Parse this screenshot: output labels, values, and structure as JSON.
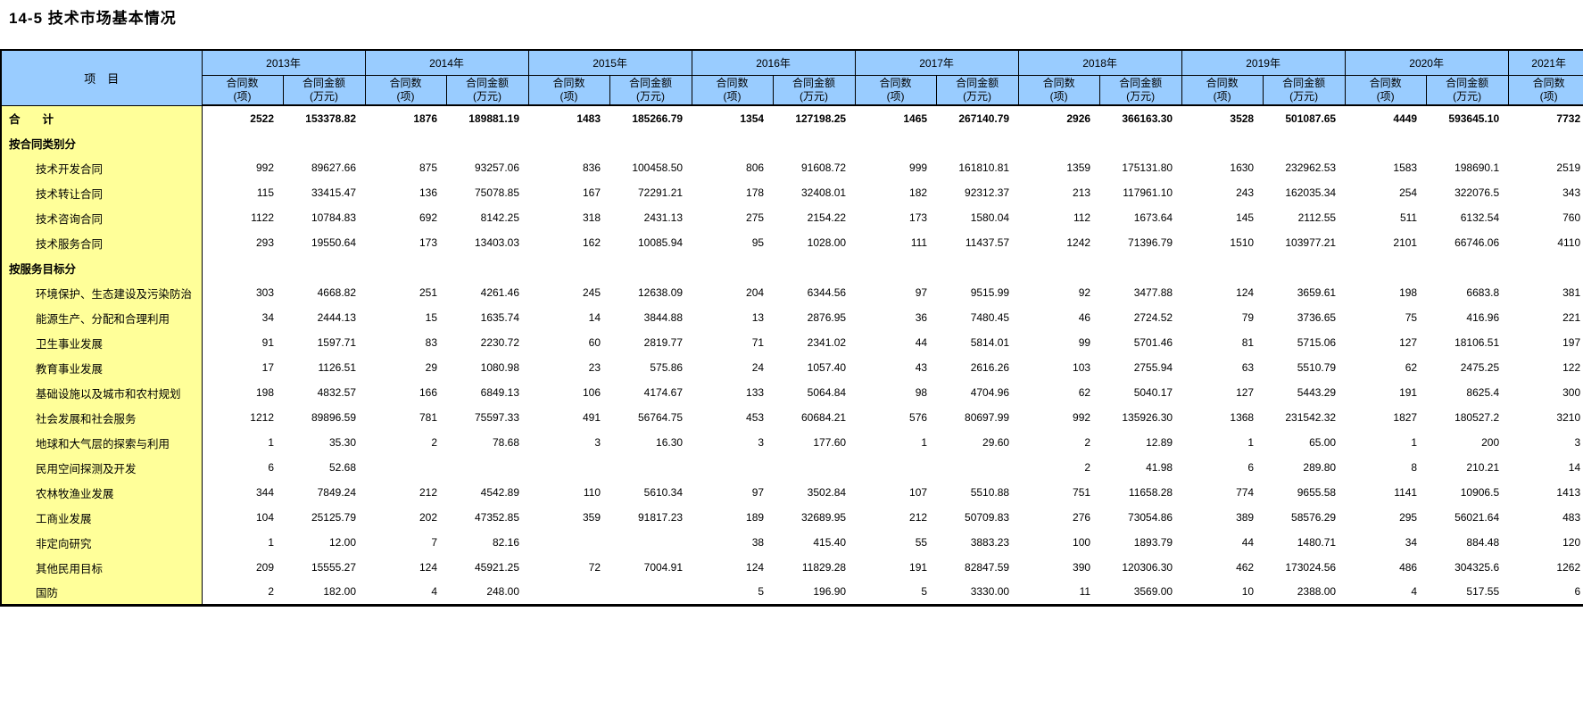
{
  "title": "14-5  技术市场基本情况",
  "table": {
    "item_header": "项　目",
    "count_header": "合同数\n(项)",
    "amount_header": "合同金额\n(万元)",
    "years": [
      "2013年",
      "2014年",
      "2015年",
      "2016年",
      "2017年",
      "2018年",
      "2019年",
      "2020年",
      "2021年"
    ],
    "rows": [
      {
        "label": "合　　计",
        "bold": true,
        "section": true,
        "values": [
          "2522",
          "153378.82",
          "1876",
          "189881.19",
          "1483",
          "185266.79",
          "1354",
          "127198.25",
          "1465",
          "267140.79",
          "2926",
          "366163.30",
          "3528",
          "501087.65",
          "4449",
          "593645.10",
          "7732"
        ]
      },
      {
        "label": "按合同类别分",
        "bold": true,
        "section": true,
        "values": [
          "",
          "",
          "",
          "",
          "",
          "",
          "",
          "",
          "",
          "",
          "",
          "",
          "",
          "",
          "",
          "",
          ""
        ]
      },
      {
        "label": "技术开发合同",
        "bold": false,
        "section": false,
        "values": [
          "992",
          "89627.66",
          "875",
          "93257.06",
          "836",
          "100458.50",
          "806",
          "91608.72",
          "999",
          "161810.81",
          "1359",
          "175131.80",
          "1630",
          "232962.53",
          "1583",
          "198690.1",
          "2519"
        ]
      },
      {
        "label": "技术转让合同",
        "bold": false,
        "section": false,
        "values": [
          "115",
          "33415.47",
          "136",
          "75078.85",
          "167",
          "72291.21",
          "178",
          "32408.01",
          "182",
          "92312.37",
          "213",
          "117961.10",
          "243",
          "162035.34",
          "254",
          "322076.5",
          "343"
        ]
      },
      {
        "label": "技术咨询合同",
        "bold": false,
        "section": false,
        "values": [
          "1122",
          "10784.83",
          "692",
          "8142.25",
          "318",
          "2431.13",
          "275",
          "2154.22",
          "173",
          "1580.04",
          "112",
          "1673.64",
          "145",
          "2112.55",
          "511",
          "6132.54",
          "760"
        ]
      },
      {
        "label": "技术服务合同",
        "bold": false,
        "section": false,
        "values": [
          "293",
          "19550.64",
          "173",
          "13403.03",
          "162",
          "10085.94",
          "95",
          "1028.00",
          "111",
          "11437.57",
          "1242",
          "71396.79",
          "1510",
          "103977.21",
          "2101",
          "66746.06",
          "4110"
        ]
      },
      {
        "label": "按服务目标分",
        "bold": true,
        "section": true,
        "values": [
          "",
          "",
          "",
          "",
          "",
          "",
          "",
          "",
          "",
          "",
          "",
          "",
          "",
          "",
          "",
          "",
          ""
        ]
      },
      {
        "label": "环境保护、生态建设及污染防治",
        "bold": false,
        "section": false,
        "values": [
          "303",
          "4668.82",
          "251",
          "4261.46",
          "245",
          "12638.09",
          "204",
          "6344.56",
          "97",
          "9515.99",
          "92",
          "3477.88",
          "124",
          "3659.61",
          "198",
          "6683.8",
          "381"
        ]
      },
      {
        "label": "能源生产、分配和合理利用",
        "bold": false,
        "section": false,
        "values": [
          "34",
          "2444.13",
          "15",
          "1635.74",
          "14",
          "3844.88",
          "13",
          "2876.95",
          "36",
          "7480.45",
          "46",
          "2724.52",
          "79",
          "3736.65",
          "75",
          "416.96",
          "221"
        ]
      },
      {
        "label": "卫生事业发展",
        "bold": false,
        "section": false,
        "values": [
          "91",
          "1597.71",
          "83",
          "2230.72",
          "60",
          "2819.77",
          "71",
          "2341.02",
          "44",
          "5814.01",
          "99",
          "5701.46",
          "81",
          "5715.06",
          "127",
          "18106.51",
          "197"
        ]
      },
      {
        "label": "教育事业发展",
        "bold": false,
        "section": false,
        "values": [
          "17",
          "1126.51",
          "29",
          "1080.98",
          "23",
          "575.86",
          "24",
          "1057.40",
          "43",
          "2616.26",
          "103",
          "2755.94",
          "63",
          "5510.79",
          "62",
          "2475.25",
          "122"
        ]
      },
      {
        "label": "基础设施以及城市和农村规划",
        "bold": false,
        "section": false,
        "values": [
          "198",
          "4832.57",
          "166",
          "6849.13",
          "106",
          "4174.67",
          "133",
          "5064.84",
          "98",
          "4704.96",
          "62",
          "5040.17",
          "127",
          "5443.29",
          "191",
          "8625.4",
          "300"
        ]
      },
      {
        "label": "社会发展和社会服务",
        "bold": false,
        "section": false,
        "values": [
          "1212",
          "89896.59",
          "781",
          "75597.33",
          "491",
          "56764.75",
          "453",
          "60684.21",
          "576",
          "80697.99",
          "992",
          "135926.30",
          "1368",
          "231542.32",
          "1827",
          "180527.2",
          "3210"
        ]
      },
      {
        "label": "地球和大气层的探索与利用",
        "bold": false,
        "section": false,
        "values": [
          "1",
          "35.30",
          "2",
          "78.68",
          "3",
          "16.30",
          "3",
          "177.60",
          "1",
          "29.60",
          "2",
          "12.89",
          "1",
          "65.00",
          "1",
          "200",
          "3"
        ]
      },
      {
        "label": "民用空间探测及开发",
        "bold": false,
        "section": false,
        "values": [
          "6",
          "52.68",
          "",
          "",
          "",
          "",
          "",
          "",
          "",
          "",
          "2",
          "41.98",
          "6",
          "289.80",
          "8",
          "210.21",
          "14"
        ]
      },
      {
        "label": "农林牧渔业发展",
        "bold": false,
        "section": false,
        "values": [
          "344",
          "7849.24",
          "212",
          "4542.89",
          "110",
          "5610.34",
          "97",
          "3502.84",
          "107",
          "5510.88",
          "751",
          "11658.28",
          "774",
          "9655.58",
          "1141",
          "10906.5",
          "1413"
        ]
      },
      {
        "label": "工商业发展",
        "bold": false,
        "section": false,
        "values": [
          "104",
          "25125.79",
          "202",
          "47352.85",
          "359",
          "91817.23",
          "189",
          "32689.95",
          "212",
          "50709.83",
          "276",
          "73054.86",
          "389",
          "58576.29",
          "295",
          "56021.64",
          "483"
        ]
      },
      {
        "label": "非定向研究",
        "bold": false,
        "section": false,
        "values": [
          "1",
          "12.00",
          "7",
          "82.16",
          "",
          "",
          "38",
          "415.40",
          "55",
          "3883.23",
          "100",
          "1893.79",
          "44",
          "1480.71",
          "34",
          "884.48",
          "120"
        ]
      },
      {
        "label": "其他民用目标",
        "bold": false,
        "section": false,
        "values": [
          "209",
          "15555.27",
          "124",
          "45921.25",
          "72",
          "7004.91",
          "124",
          "11829.28",
          "191",
          "82847.59",
          "390",
          "120306.30",
          "462",
          "173024.56",
          "486",
          "304325.6",
          "1262"
        ]
      },
      {
        "label": "国防",
        "bold": false,
        "section": false,
        "values": [
          "2",
          "182.00",
          "4",
          "248.00",
          "",
          "",
          "5",
          "196.90",
          "5",
          "3330.00",
          "11",
          "3569.00",
          "10",
          "2388.00",
          "4",
          "517.55",
          "6"
        ]
      }
    ],
    "layout": {
      "label_col_width": 225,
      "count_col_width": 91,
      "amount_col_width": 92,
      "header_blue": "#99CCFF",
      "label_yellow": "#FFFF99"
    }
  }
}
